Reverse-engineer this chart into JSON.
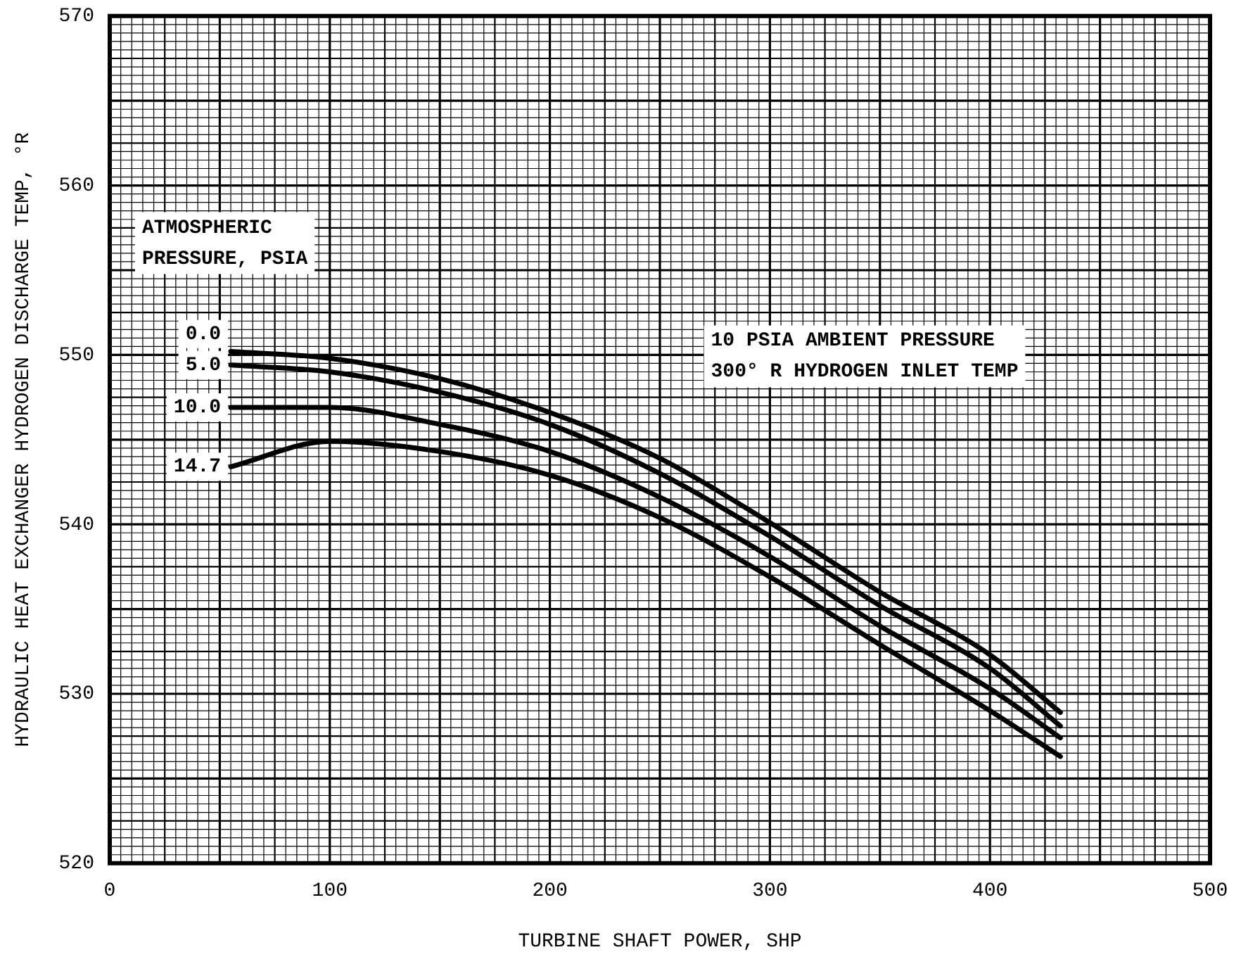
{
  "chart_data": {
    "type": "line",
    "xlabel": "TURBINE SHAFT POWER, SHP",
    "ylabel": "HYDRAULIC HEAT EXCHANGER HYDROGEN DISCHARGE TEMP, °R",
    "legend_title": "ATMOSPHERIC\nPRESSURE, PSIA",
    "annotations": [
      "10 PSIA AMBIENT PRESSURE\n300° R HYDROGEN INLET TEMP"
    ],
    "x": [
      55,
      100,
      150,
      200,
      250,
      300,
      350,
      400,
      432
    ],
    "series": [
      {
        "name": "0.0",
        "color": "#000000",
        "values": [
          550.2,
          549.8,
          548.6,
          546.6,
          543.9,
          540.1,
          536,
          532.3,
          528.9
        ]
      },
      {
        "name": "5.0",
        "color": "#000000",
        "values": [
          549.4,
          549,
          547.8,
          545.9,
          543,
          539.3,
          535.2,
          531.5,
          528.1
        ]
      },
      {
        "name": "10.0",
        "color": "#000000",
        "values": [
          546.9,
          546.9,
          545.9,
          544.3,
          541.6,
          538.1,
          534,
          530.3,
          527.4
        ]
      },
      {
        "name": "14.7",
        "color": "#000000",
        "values": [
          543.4,
          544.9,
          544.3,
          542.9,
          540.4,
          536.9,
          532.9,
          529,
          526.3
        ]
      }
    ],
    "xlim": [
      0,
      500
    ],
    "xticks": [
      0,
      100,
      200,
      300,
      400,
      500
    ],
    "ylim": [
      520,
      570
    ],
    "yticks": [
      520,
      530,
      540,
      550,
      560,
      570
    ],
    "grid": true,
    "legend": false,
    "marker": "none",
    "line_style": "solid"
  }
}
